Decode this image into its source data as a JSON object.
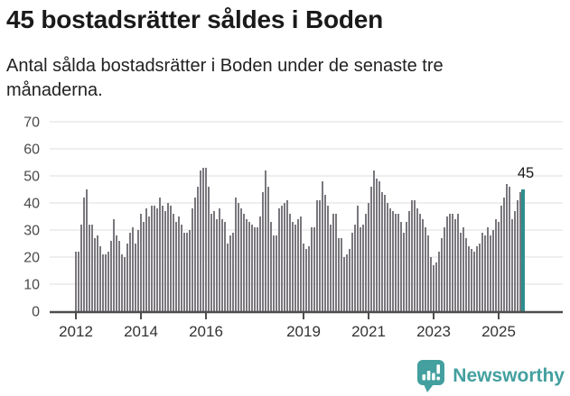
{
  "header": {
    "title": "45 bostadsrätter såldes i Boden",
    "subtitle": "Antal sålda bostadsrätter i Boden under de senaste tre månaderna."
  },
  "chart_data": {
    "type": "bar",
    "title": "45 bostadsrätter såldes i Boden",
    "subtitle": "Antal sålda bostadsrätter i Boden under de senaste tre månaderna.",
    "unit": "antal sålda bostadsrätter (rullande 3 månader)",
    "frequency": "monthly",
    "start": "2012-01",
    "end": "2025-10",
    "ylim": [
      0,
      70
    ],
    "yticks": [
      0,
      10,
      20,
      30,
      40,
      50,
      60,
      70
    ],
    "grid": "horizontal",
    "bar_color": "#7a777d",
    "axis_color": "#4d4d4d",
    "grid_color": "#e3e3e3",
    "x_ticks": [
      {
        "index": 0,
        "label": "2012"
      },
      {
        "index": 24,
        "label": "2014"
      },
      {
        "index": 48,
        "label": "2016"
      },
      {
        "index": 84,
        "label": "2019"
      },
      {
        "index": 108,
        "label": "2021"
      },
      {
        "index": 132,
        "label": "2023"
      },
      {
        "index": 156,
        "label": "2025"
      }
    ],
    "values": [
      22,
      22,
      32,
      42,
      45,
      32,
      32,
      27,
      28,
      24,
      21,
      21,
      22,
      26,
      34,
      28,
      26,
      21,
      20,
      25,
      29,
      31,
      25,
      30,
      36,
      33,
      38,
      35,
      39,
      39,
      38,
      42,
      39,
      37,
      40,
      39,
      36,
      33,
      35,
      32,
      29,
      29,
      30,
      38,
      42,
      46,
      52,
      53,
      53,
      46,
      36,
      37,
      34,
      38,
      34,
      33,
      25,
      28,
      29,
      42,
      40,
      38,
      36,
      34,
      33,
      32,
      31,
      31,
      35,
      44,
      52,
      46,
      33,
      28,
      28,
      38,
      39,
      40,
      41,
      36,
      33,
      32,
      34,
      35,
      25,
      23,
      24,
      31,
      31,
      41,
      41,
      48,
      43,
      39,
      32,
      36,
      36,
      27,
      27,
      20,
      21,
      23,
      29,
      32,
      39,
      31,
      32,
      36,
      40,
      46,
      52,
      49,
      48,
      44,
      43,
      40,
      38,
      37,
      36,
      36,
      33,
      29,
      33,
      37,
      41,
      41,
      38,
      36,
      34,
      31,
      28,
      20,
      17,
      18,
      22,
      27,
      31,
      35,
      36,
      36,
      34,
      36,
      29,
      31,
      27,
      24,
      23,
      22,
      24,
      25,
      29,
      28,
      31,
      28,
      30,
      34,
      33,
      39,
      42,
      47,
      46,
      34,
      37,
      41,
      44,
      45
    ],
    "highlight": {
      "index": 165,
      "value": 45,
      "label": "45",
      "color": "#2e8d8f",
      "label_color": "#1a1a1a"
    }
  },
  "footer": {
    "brand": "Newsworthy",
    "brand_color": "#43a09f",
    "logo_icon": "bar-chart-speech-bubble-icon"
  }
}
